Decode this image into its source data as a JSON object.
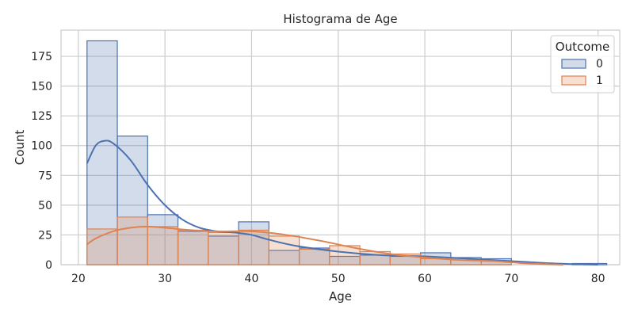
{
  "chart_data": {
    "type": "bar",
    "title": "Histograma de Age",
    "xlabel": "Age",
    "ylabel": "Count",
    "xlim": [
      18,
      82.5
    ],
    "ylim": [
      0,
      197
    ],
    "xticks": [
      20,
      30,
      40,
      50,
      60,
      70,
      80
    ],
    "yticks": [
      0,
      25,
      50,
      75,
      100,
      125,
      150,
      175
    ],
    "grid": true,
    "bin_edges": [
      21,
      24.5,
      28,
      31.5,
      35,
      38.5,
      42,
      45.5,
      49,
      52.5,
      56,
      59.5,
      63,
      66.5,
      70,
      73.5,
      77,
      81
    ],
    "legend": {
      "title": "Outcome",
      "placement": "top-right"
    },
    "series": [
      {
        "name": "0",
        "color": "#4c72b0",
        "values": [
          188,
          108,
          42,
          28,
          24,
          36,
          12,
          14,
          7,
          8,
          7,
          10,
          6,
          5,
          0,
          0,
          1
        ],
        "kde": {
          "x": [
            21,
            22,
            23,
            24,
            26,
            28,
            30,
            32,
            34,
            36,
            38,
            40,
            42,
            45,
            50,
            55,
            60,
            65,
            70,
            75,
            80
          ],
          "y": [
            85,
            100,
            104,
            102,
            88,
            67,
            50,
            38,
            31,
            28,
            27,
            25,
            21,
            16,
            11,
            8,
            7,
            5,
            3,
            1,
            0
          ]
        }
      },
      {
        "name": "1",
        "color": "#dd8452",
        "values": [
          30,
          40,
          32,
          29,
          27,
          29,
          24,
          13,
          16,
          11,
          9,
          5,
          4,
          3,
          0,
          0,
          0
        ],
        "kde": {
          "x": [
            21,
            22,
            24,
            26,
            28,
            30,
            33,
            36,
            40,
            44,
            48,
            52,
            56,
            60,
            64,
            68,
            72,
            76
          ],
          "y": [
            17,
            22,
            28,
            31,
            32,
            31,
            29,
            28,
            28,
            25,
            20,
            14,
            9,
            6,
            4,
            3,
            1,
            0
          ]
        }
      }
    ]
  }
}
